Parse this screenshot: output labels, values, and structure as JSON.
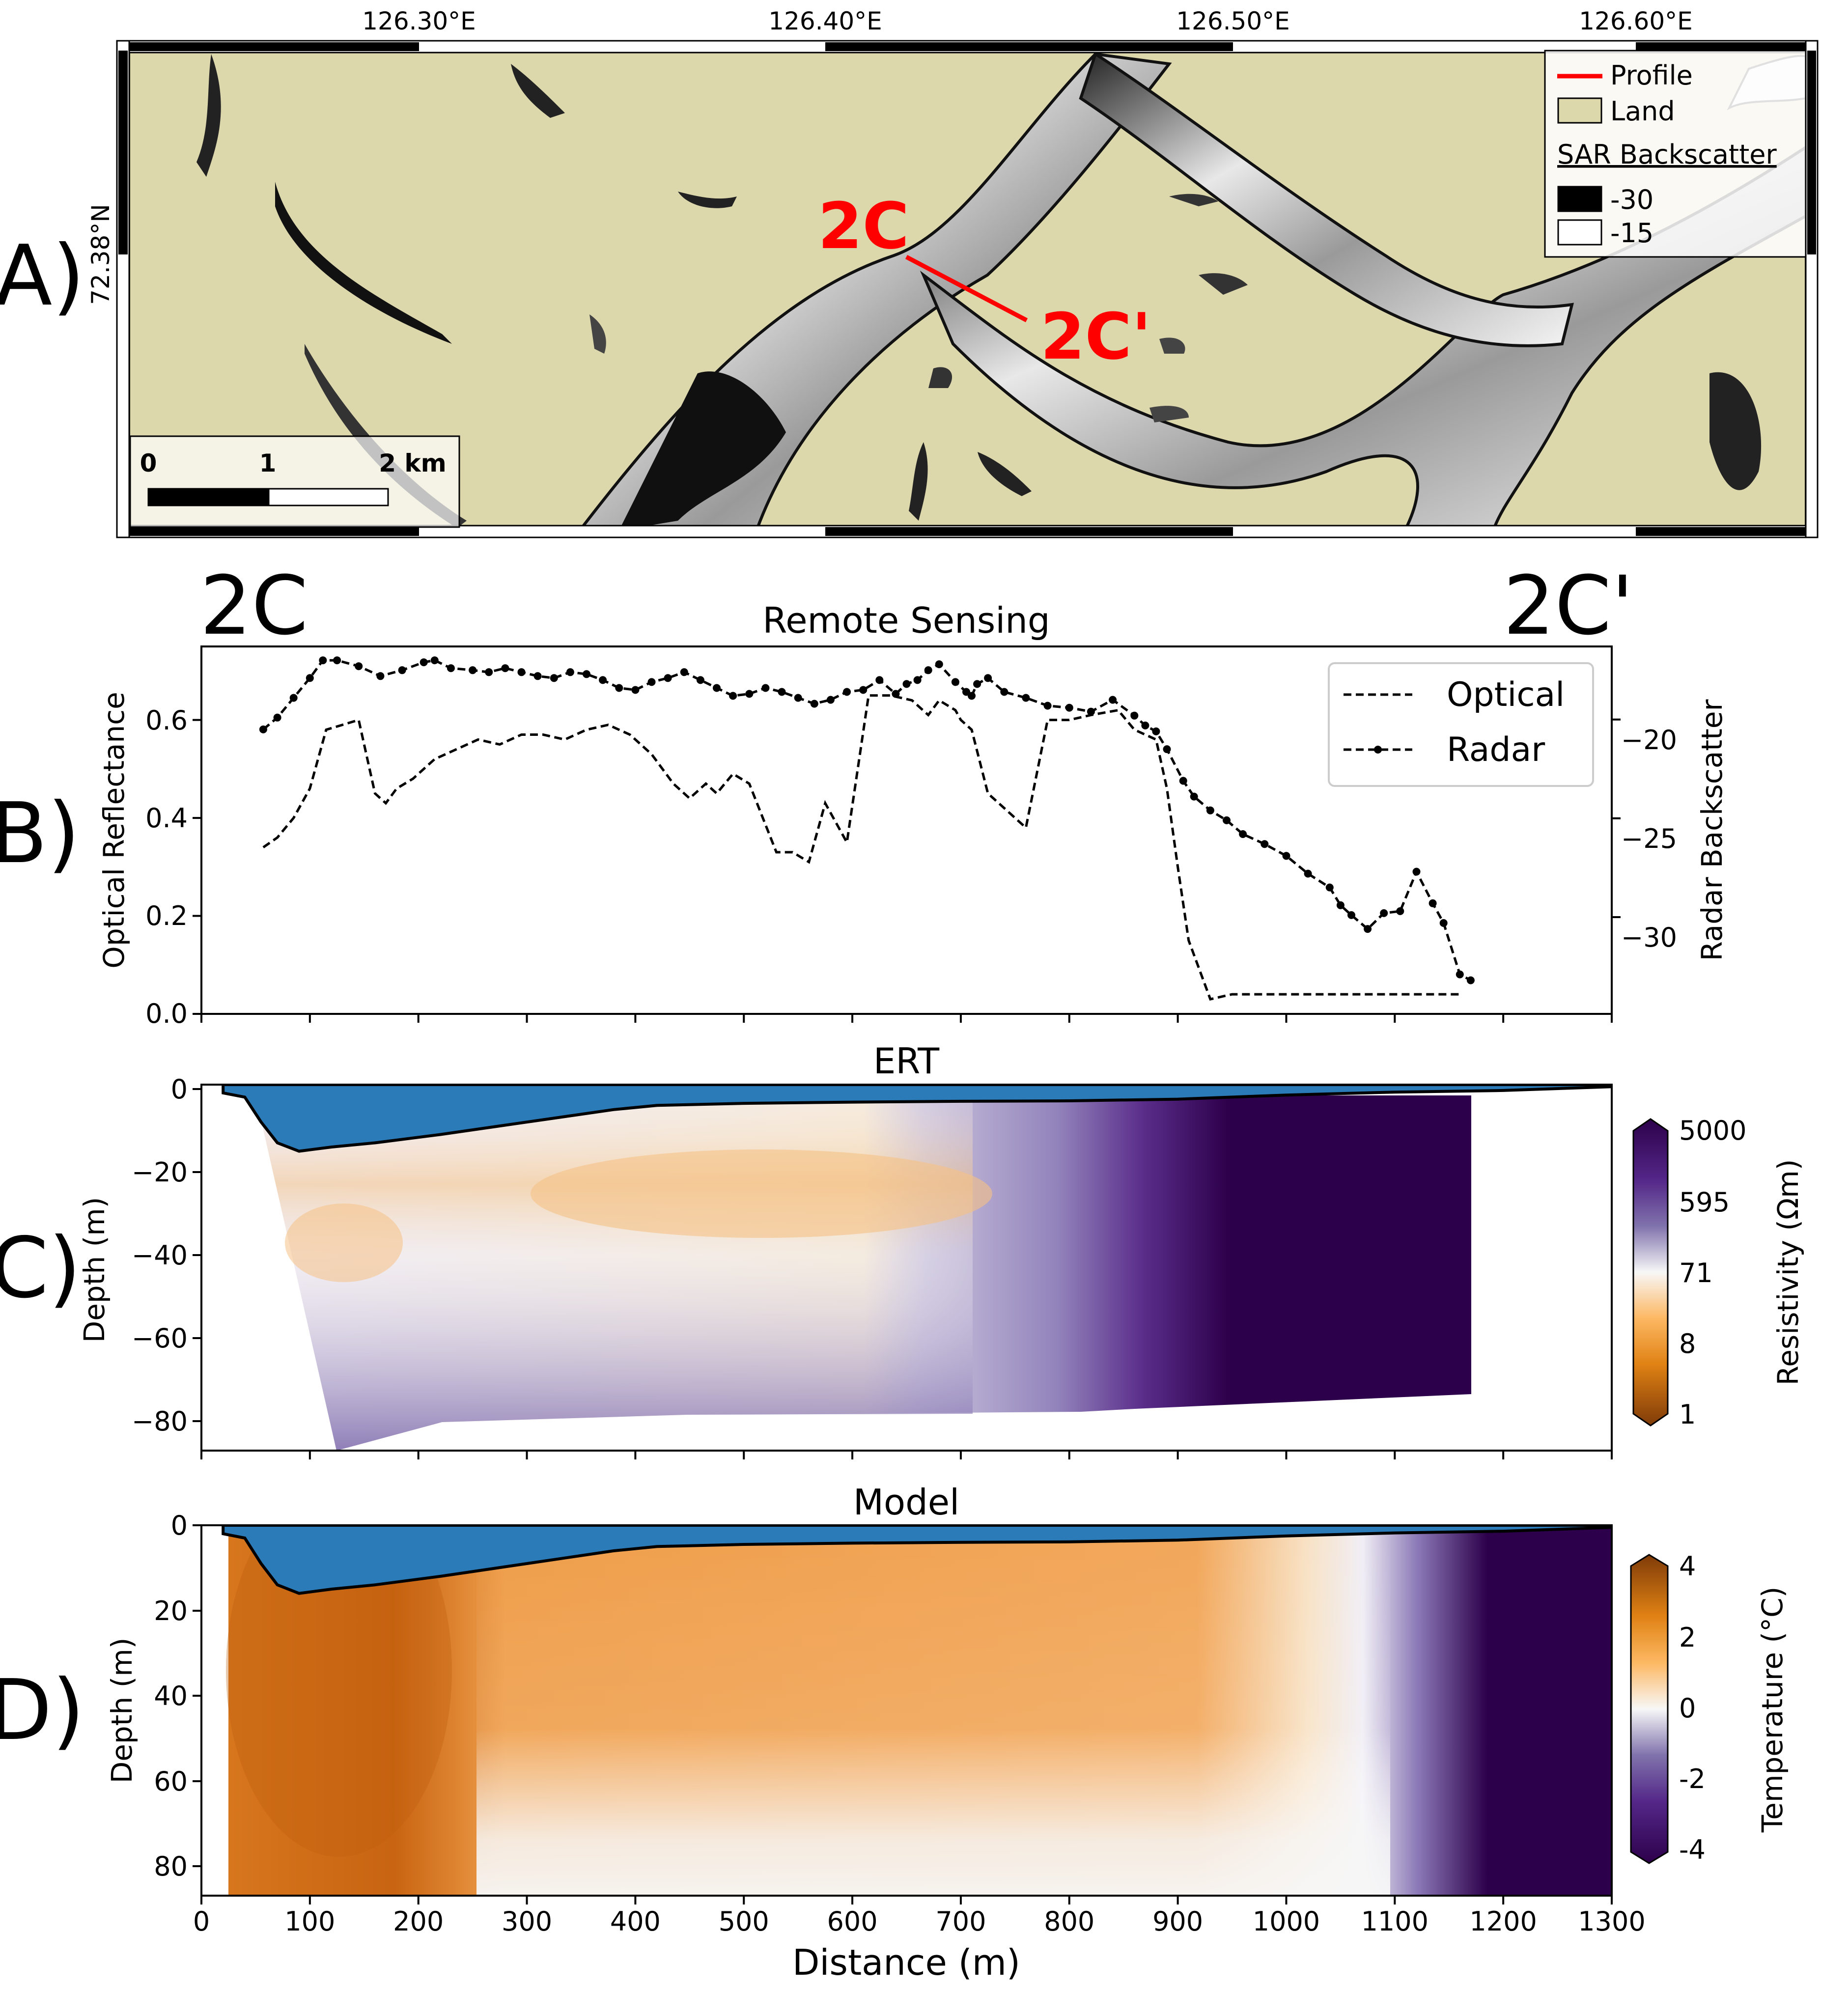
{
  "panel_labels": {
    "a": "A)",
    "b": "B)",
    "c": "C)",
    "d": "D)"
  },
  "profile_labels": {
    "start": "2C",
    "end": "2C'"
  },
  "colors": {
    "land": "#ddd8ac",
    "profile_red": "#ff0000",
    "water_blue": "#2b7bb9",
    "optical_line": "#000000",
    "radar_line": "#000000",
    "puor_low": "#7f3b08",
    "puor_mid": "#f7f7f7",
    "puor_high": "#2d004b"
  },
  "panel_a": {
    "type": "map",
    "lon_ticks": [
      "126.30°E",
      "126.40°E",
      "126.50°E",
      "126.60°E"
    ],
    "lat_tick": "72.38°N",
    "profile_start_label": "2C",
    "profile_end_label": "2C'",
    "legend": {
      "profile": "Profile",
      "land": "Land",
      "sar_title": "SAR Backscatter",
      "sar_low": "-30",
      "sar_high": "-15"
    },
    "scalebar": {
      "labels": [
        "0",
        "1",
        "2 km"
      ]
    }
  },
  "chart_data": [
    {
      "panel": "B",
      "type": "line",
      "title": "Remote Sensing",
      "xlabel": "",
      "ylabel": "Optical Reflectance",
      "y2label": "Radar Backscatter",
      "xlim": [
        0,
        1300
      ],
      "ylim": [
        0,
        0.75
      ],
      "y2lim": [
        -34.9,
        -16.3
      ],
      "yticks": [
        "0.0",
        "0.2",
        "0.4",
        "0.6"
      ],
      "y2ticks": [
        "−20",
        "−25",
        "−30"
      ],
      "legend": {
        "position": "top-right",
        "entries": [
          "Optical",
          "Radar"
        ]
      },
      "series": [
        {
          "name": "Optical",
          "axis": "left",
          "style": "dashed",
          "x": [
            57,
            70,
            85,
            100,
            115,
            130,
            145,
            160,
            170,
            180,
            195,
            215,
            235,
            255,
            275,
            295,
            315,
            335,
            355,
            375,
            395,
            415,
            435,
            450,
            465,
            475,
            490,
            505,
            530,
            545,
            560,
            575,
            595,
            615,
            635,
            655,
            670,
            680,
            695,
            700,
            710,
            725,
            740,
            760,
            780,
            800,
            820,
            845,
            860,
            880,
            890,
            900,
            910,
            930,
            950,
            970,
            990,
            1020,
            1050,
            1080,
            1110,
            1140,
            1160
          ],
          "values": [
            0.34,
            0.36,
            0.4,
            0.46,
            0.58,
            0.59,
            0.6,
            0.45,
            0.43,
            0.46,
            0.48,
            0.52,
            0.54,
            0.56,
            0.55,
            0.57,
            0.57,
            0.56,
            0.58,
            0.59,
            0.57,
            0.53,
            0.47,
            0.44,
            0.47,
            0.45,
            0.49,
            0.47,
            0.33,
            0.33,
            0.31,
            0.43,
            0.35,
            0.65,
            0.65,
            0.64,
            0.61,
            0.64,
            0.62,
            0.6,
            0.58,
            0.45,
            0.42,
            0.38,
            0.6,
            0.6,
            0.61,
            0.62,
            0.58,
            0.56,
            0.46,
            0.3,
            0.15,
            0.03,
            0.04,
            0.04,
            0.04,
            0.04,
            0.04,
            0.04,
            0.04,
            0.04,
            0.04
          ]
        },
        {
          "name": "Radar",
          "axis": "right",
          "style": "dash-dot-markers",
          "x": [
            57,
            70,
            85,
            100,
            112,
            125,
            145,
            165,
            185,
            205,
            215,
            230,
            250,
            265,
            280,
            295,
            310,
            325,
            340,
            355,
            370,
            385,
            400,
            415,
            430,
            445,
            460,
            475,
            490,
            505,
            520,
            535,
            550,
            565,
            580,
            595,
            610,
            625,
            640,
            650,
            660,
            670,
            680,
            695,
            705,
            710,
            715,
            725,
            740,
            760,
            780,
            800,
            820,
            840,
            860,
            870,
            880,
            890,
            905,
            915,
            930,
            945,
            960,
            980,
            1000,
            1020,
            1040,
            1050,
            1060,
            1075,
            1090,
            1105,
            1120,
            1135,
            1145,
            1160,
            1170
          ],
          "values": [
            -20.5,
            -19.9,
            -18.9,
            -17.9,
            -17.0,
            -17.0,
            -17.3,
            -17.8,
            -17.5,
            -17.1,
            -17.0,
            -17.4,
            -17.5,
            -17.6,
            -17.4,
            -17.6,
            -17.8,
            -17.9,
            -17.6,
            -17.7,
            -18.0,
            -18.4,
            -18.5,
            -18.1,
            -17.9,
            -17.6,
            -18.0,
            -18.4,
            -18.8,
            -18.7,
            -18.4,
            -18.6,
            -18.9,
            -19.2,
            -19.0,
            -18.6,
            -18.5,
            -18.0,
            -18.7,
            -18.2,
            -18.0,
            -17.5,
            -17.2,
            -18.1,
            -18.6,
            -18.8,
            -18.2,
            -17.9,
            -18.6,
            -18.9,
            -19.3,
            -19.4,
            -19.6,
            -19.0,
            -19.8,
            -20.3,
            -20.6,
            -21.5,
            -23.1,
            -23.9,
            -24.6,
            -25.1,
            -25.8,
            -26.3,
            -26.9,
            -27.8,
            -28.5,
            -29.4,
            -29.9,
            -30.6,
            -29.8,
            -29.7,
            -27.7,
            -29.3,
            -30.3,
            -32.9,
            -33.2
          ]
        }
      ]
    },
    {
      "panel": "C",
      "type": "heatmap",
      "title": "ERT",
      "xlabel": "",
      "ylabel": "Depth (m)",
      "xlim": [
        0,
        1300
      ],
      "ylim": [
        -88,
        0
      ],
      "yticks": [
        "0",
        "−20",
        "−40",
        "−60",
        "−80"
      ],
      "colorbar": {
        "label": "Resistivity (Ωm)",
        "ticks": [
          "5000",
          "595",
          "71",
          "8",
          "1"
        ],
        "scale": "log"
      },
      "water_depth": {
        "x": [
          20,
          40,
          55,
          70,
          90,
          120,
          160,
          220,
          300,
          380,
          420,
          500,
          600,
          700,
          800,
          900,
          1000,
          1100,
          1200,
          1300
        ],
        "depth": [
          -2,
          -3,
          -9,
          -14,
          -16,
          -15,
          -14,
          -12,
          -9,
          -6,
          -5,
          -4.5,
          -4.2,
          -4,
          -3.9,
          -3.5,
          -2.5,
          -1.8,
          -1.4,
          -0.5
        ]
      }
    },
    {
      "panel": "D",
      "type": "heatmap",
      "title": "Model",
      "xlabel": "Distance (m)",
      "ylabel": "Depth (m)",
      "xlim": [
        0,
        1300
      ],
      "ylim": [
        87,
        0
      ],
      "xticks": [
        "0",
        "100",
        "200",
        "300",
        "400",
        "500",
        "600",
        "700",
        "800",
        "900",
        "1000",
        "1100",
        "1200",
        "1300"
      ],
      "yticks": [
        "0",
        "20",
        "40",
        "60",
        "80"
      ],
      "colorbar": {
        "label": "Temperature (°C)",
        "ticks": [
          "4",
          "2",
          "0",
          "-2",
          "-4"
        ],
        "range": [
          -4,
          4
        ]
      },
      "water_depth": {
        "x": [
          20,
          40,
          55,
          70,
          90,
          120,
          160,
          220,
          300,
          380,
          420,
          500,
          600,
          700,
          800,
          900,
          1000,
          1100,
          1200,
          1300
        ],
        "depth": [
          2,
          3,
          9,
          14,
          16,
          15,
          14,
          12,
          9,
          6,
          5,
          4.5,
          4.2,
          4,
          3.9,
          3.5,
          2.5,
          1.8,
          1.4,
          0.5
        ]
      }
    }
  ]
}
